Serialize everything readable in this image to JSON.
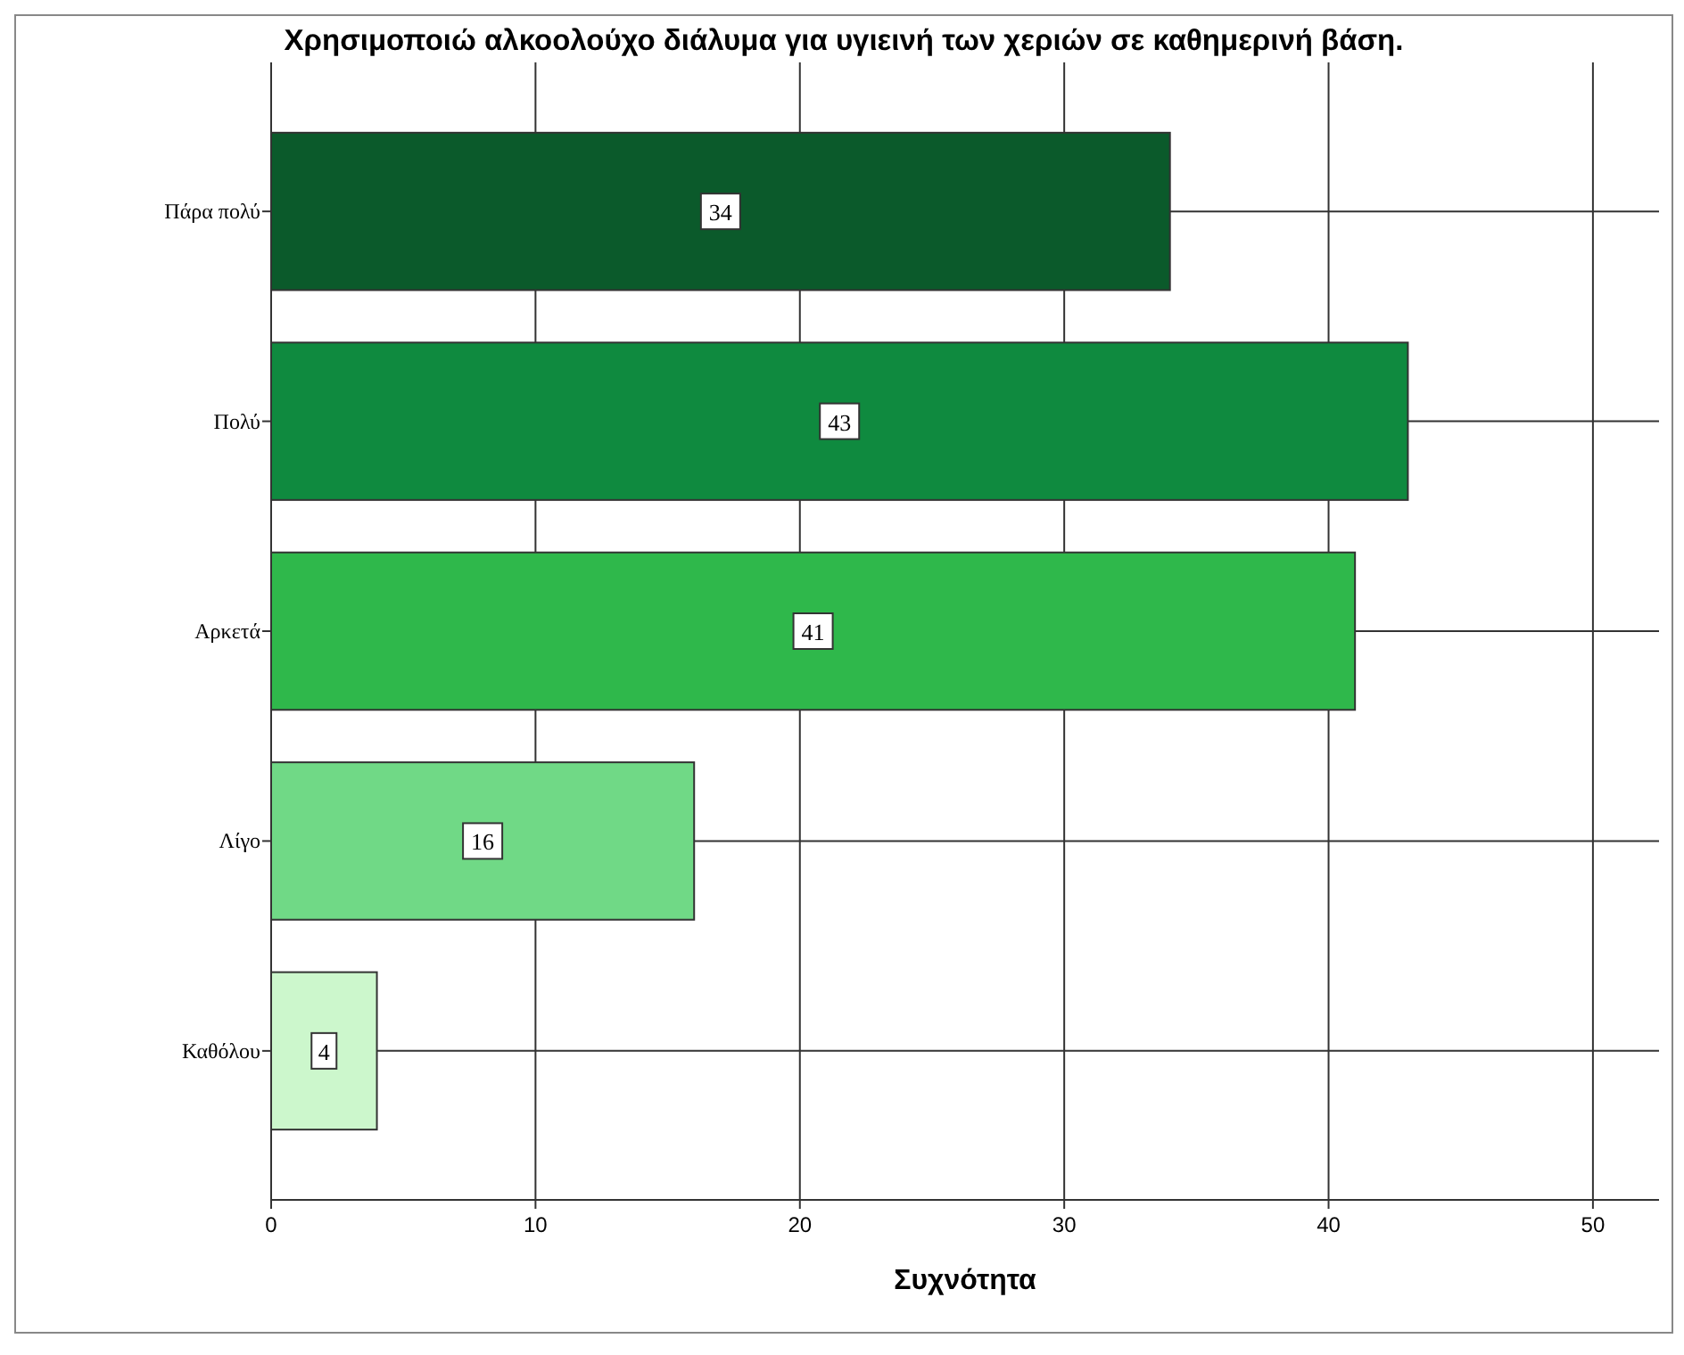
{
  "chart_data": {
    "type": "bar",
    "orientation": "horizontal",
    "title": "Χρησιμοποιώ αλκοολούχο διάλυμα για υγιεινή των χεριών σε καθημερινή βάση.",
    "xlabel": "Συχνότητα",
    "categories": [
      "Πάρα πολύ",
      "Πολύ",
      "Αρκετά",
      "Λίγο",
      "Καθόλου"
    ],
    "values": [
      34,
      43,
      41,
      16,
      4
    ],
    "colors": [
      "#0b5a2b",
      "#0f8a3f",
      "#2fb84b",
      "#70d986",
      "#ccf7cc"
    ],
    "xlim": [
      0,
      52.5
    ],
    "xticks": [
      0,
      10,
      20,
      30,
      40,
      50
    ],
    "grid": true,
    "data_labels": true
  }
}
